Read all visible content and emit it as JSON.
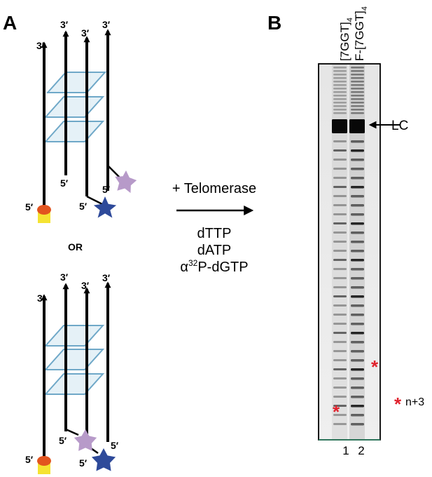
{
  "panel_a": {
    "label": "A",
    "end_3": "3′",
    "end_5": "5′",
    "or_text": "OR"
  },
  "reaction": {
    "enzyme": "+ Telomerase",
    "nucleotides": [
      "dTTP",
      "dATP"
    ],
    "alpha": "α",
    "isotope": "32",
    "labeled_nucleotide": "P-dGTP"
  },
  "panel_b": {
    "label": "B",
    "lanes": [
      {
        "number": "1",
        "header": "[7GGT]",
        "subscript": "4"
      },
      {
        "number": "2",
        "header": "F-[7GGT]",
        "subscript": "4"
      }
    ],
    "lc_label": "LC",
    "asterisk": "*",
    "legend_text": "n+3"
  },
  "colors": {
    "quad": "#6fa8c8",
    "quad_fill": "#cfe6f0",
    "star_purple": "#b79ac9",
    "star_blue": "#2e4a9a",
    "dot": "#e2541f",
    "base": "#f5e332",
    "asterisk": "#e0222d"
  }
}
